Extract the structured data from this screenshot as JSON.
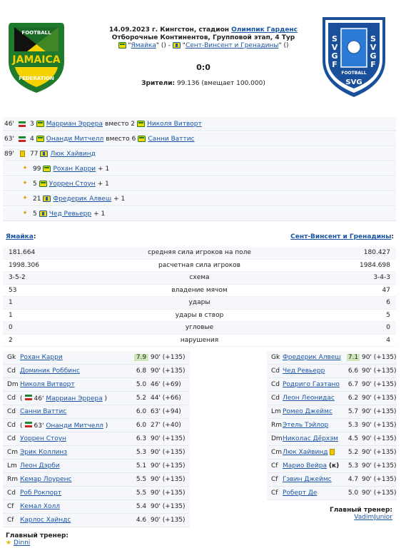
{
  "match": {
    "date_place": "14.09.2023 г. Кингстон, стадион",
    "stadium": "Олимпик Гарденс",
    "stage": "Отборочные Континентов, Групповой этап, 4 Тур",
    "home_team": "Ямайка",
    "home_extra": "()",
    "dash": "-",
    "away_team": "Сент-Винсент и Гренадины",
    "away_extra": "()",
    "score": "0:0",
    "spectators_label": "Зрители:",
    "spectators": "99.136 (вмещает 100.000)"
  },
  "logos": {
    "home_text": "JAMAICA",
    "home_ring_top": "FOOTBALL",
    "home_ring_bottom": "FEDERATION",
    "away_text": "SVGFF",
    "away_bottom": "FOOTBALL",
    "away_abbr": "SVG"
  },
  "events": [
    {
      "minute": "46'",
      "type": "subst",
      "num_in": "3",
      "name_in": "Марриан Эррера",
      "word": "вместо",
      "num_out": "2",
      "name_out": "Николя Витворт"
    },
    {
      "minute": "63'",
      "type": "subst",
      "num_in": "4",
      "name_in": "Онанди Митчелл",
      "word": "вместо",
      "num_out": "6",
      "name_out": "Санни Ваттис"
    },
    {
      "minute": "89'",
      "type": "yellow",
      "num": "77",
      "name": "Люк Хайвинд"
    },
    {
      "type": "assist",
      "num": "99",
      "name": "Рохан Карри",
      "plus": "+ 1"
    },
    {
      "type": "assist",
      "num": "5",
      "name": "Уоррен Стоун",
      "plus": "+ 1"
    },
    {
      "type": "assist",
      "num": "21",
      "name": "Фредерик Алвеш",
      "plus": "+ 1"
    },
    {
      "type": "assist",
      "num": "5",
      "name": "Чед Ревьерр",
      "plus": "+ 1"
    }
  ],
  "teams": {
    "home": "Ямайка",
    "home_suffix": ":",
    "away": "Сент-Винсент и Гренадины",
    "away_suffix": ":"
  },
  "stats": [
    {
      "a": "181.664",
      "label": "средняя сила игроков на поле",
      "b": "180.427"
    },
    {
      "a": "1998.306",
      "label": "расчетная сила игроков",
      "b": "1984.698"
    },
    {
      "a": "3-5-2",
      "label": "схема",
      "b": "3-4-3"
    },
    {
      "a": "53",
      "label": "владение мячом",
      "b": "47"
    },
    {
      "a": "1",
      "label": "удары",
      "b": "6"
    },
    {
      "a": "1",
      "label": "удары в створ",
      "b": "5"
    },
    {
      "a": "0",
      "label": "угловые",
      "b": "0"
    },
    {
      "a": "2",
      "label": "нарушения",
      "b": "4"
    }
  ],
  "home_lineup": [
    {
      "pos": "Gk",
      "name": "Рохан Карри",
      "rating": "7.9",
      "min": "90' (+135)",
      "best": true
    },
    {
      "pos": "Cd",
      "name": "Доминик Роббинс",
      "rating": "6.8",
      "min": "90' (+135)"
    },
    {
      "pos": "Dm",
      "name": "Николя Витворт",
      "rating": "5.0",
      "min": "46' (+69)"
    },
    {
      "pos": "Cd",
      "name": "Марриан Эррера",
      "prefix": "(",
      "sub_min": "46'",
      "suffix": ")",
      "rating": "5.2",
      "min": "44' (+66)",
      "sub": true
    },
    {
      "pos": "Cd",
      "name": "Санни Ваттис",
      "rating": "6.0",
      "min": "63' (+94)"
    },
    {
      "pos": "Cd",
      "name": "Онанди Митчелл",
      "prefix": "(",
      "sub_min": "63'",
      "suffix": ")",
      "rating": "6.0",
      "min": "27' (+40)",
      "sub": true
    },
    {
      "pos": "Cd",
      "name": "Уоррен Стоун",
      "rating": "6.3",
      "min": "90' (+135)"
    },
    {
      "pos": "Cm",
      "name": "Эрик Коллинз",
      "rating": "5.3",
      "min": "90' (+135)"
    },
    {
      "pos": "Lm",
      "name": "Леон Дэрби",
      "rating": "5.1",
      "min": "90' (+135)"
    },
    {
      "pos": "Rm",
      "name": "Кемар Лоуренс",
      "rating": "5.5",
      "min": "90' (+135)"
    },
    {
      "pos": "Cd",
      "name": "Роб Рокпорт",
      "rating": "5.5",
      "min": "90' (+135)"
    },
    {
      "pos": "Cf",
      "name": "Кемал Холл",
      "rating": "5.4",
      "min": "90' (+135)"
    },
    {
      "pos": "Cf",
      "name": "Карлос Хайндс",
      "rating": "4.6",
      "min": "90' (+135)"
    }
  ],
  "away_lineup": [
    {
      "pos": "Gk",
      "name": "Фредерик Алвеш",
      "rating": "7.1",
      "min": "90' (+135)",
      "best": true
    },
    {
      "pos": "Cd",
      "name": "Чед Ревьерр",
      "rating": "6.6",
      "min": "90' (+135)"
    },
    {
      "pos": "Cd",
      "name": "Родриго Гаэтано",
      "rating": "6.7",
      "min": "90' (+135)"
    },
    {
      "pos": "Cd",
      "name": "Леон Леонидас",
      "rating": "6.2",
      "min": "90' (+135)"
    },
    {
      "pos": "Lm",
      "name": "Ромео Джеймс",
      "rating": "5.7",
      "min": "90' (+135)"
    },
    {
      "pos": "Rm",
      "name": "Этель Тэйлор",
      "rating": "5.3",
      "min": "90' (+135)"
    },
    {
      "pos": "Dm",
      "name": "Николас Дёрхэм",
      "rating": "4.5",
      "min": "90' (+135)"
    },
    {
      "pos": "Cm",
      "name": "Люк Хайвинд",
      "rating": "5.2",
      "min": "90' (+135)",
      "yellow": true
    },
    {
      "pos": "Cf",
      "name": "Марио Вейра",
      "suffix": "(к)",
      "rating": "5.3",
      "min": "90' (+135)"
    },
    {
      "pos": "Cf",
      "name": "Гэвин Джеймс",
      "rating": "4.7",
      "min": "90' (+135)"
    },
    {
      "pos": "Cf",
      "name": "Роберт Де",
      "rating": "5.0",
      "min": "90' (+135)"
    }
  ],
  "coaches": {
    "label": "Главный тренер:",
    "home": "Dinni",
    "away": "VadimJunior"
  }
}
